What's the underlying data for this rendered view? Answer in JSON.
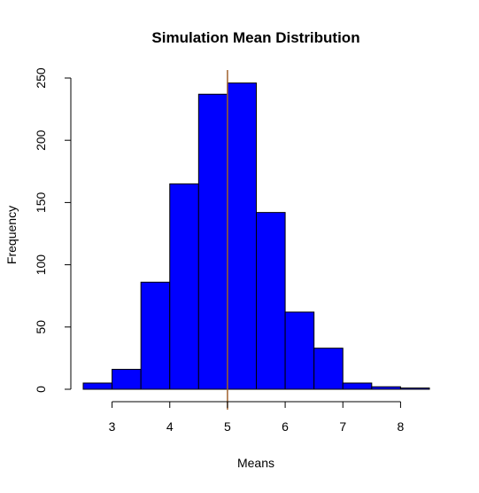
{
  "chart_data": {
    "type": "bar",
    "title": "Simulation Mean Distribution",
    "xlabel": "Means",
    "ylabel": "Frequency",
    "bins": [
      {
        "x0": 2.5,
        "x1": 3.0,
        "count": 5
      },
      {
        "x0": 3.0,
        "x1": 3.5,
        "count": 16
      },
      {
        "x0": 3.5,
        "x1": 4.0,
        "count": 86
      },
      {
        "x0": 4.0,
        "x1": 4.5,
        "count": 165
      },
      {
        "x0": 4.5,
        "x1": 5.0,
        "count": 237
      },
      {
        "x0": 5.0,
        "x1": 5.5,
        "count": 246
      },
      {
        "x0": 5.5,
        "x1": 6.0,
        "count": 142
      },
      {
        "x0": 6.0,
        "x1": 6.5,
        "count": 62
      },
      {
        "x0": 6.5,
        "x1": 7.0,
        "count": 33
      },
      {
        "x0": 7.0,
        "x1": 7.5,
        "count": 5
      },
      {
        "x0": 7.5,
        "x1": 8.0,
        "count": 2
      },
      {
        "x0": 8.0,
        "x1": 8.5,
        "count": 1
      }
    ],
    "xlim": [
      2.5,
      8.5
    ],
    "ylim": [
      0,
      250
    ],
    "x_ticks": [
      3,
      4,
      5,
      6,
      7,
      8
    ],
    "y_ticks": [
      0,
      50,
      100,
      150,
      200,
      250
    ],
    "reference_line_x": 5.0,
    "bar_color": "#0000ff",
    "bar_border_color": "#000000",
    "reference_line_color": "#a0622d",
    "grid": false
  }
}
